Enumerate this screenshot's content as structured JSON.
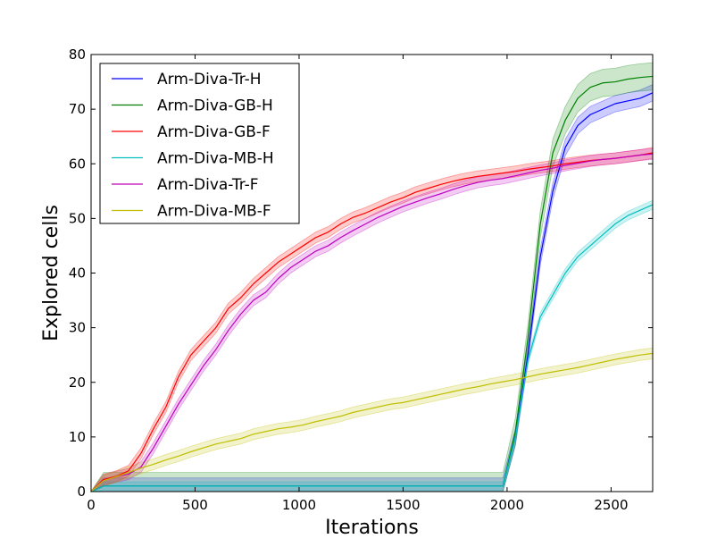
{
  "chart_data": {
    "type": "line",
    "xlabel": "Iterations",
    "ylabel": "Explored cells",
    "xlim": [
      0,
      2700
    ],
    "ylim": [
      0,
      80
    ],
    "xticks": [
      0,
      500,
      1000,
      1500,
      2000,
      2500
    ],
    "yticks": [
      0,
      10,
      20,
      30,
      40,
      50,
      60,
      70,
      80
    ],
    "grid": false,
    "legend_position": "top-left",
    "x": [
      0,
      60,
      120,
      180,
      240,
      300,
      360,
      420,
      480,
      540,
      600,
      660,
      720,
      780,
      840,
      900,
      960,
      1020,
      1080,
      1140,
      1200,
      1260,
      1320,
      1380,
      1440,
      1500,
      1560,
      1620,
      1680,
      1740,
      1800,
      1860,
      1920,
      1980,
      2040,
      2100,
      2160,
      2220,
      2280,
      2340,
      2400,
      2460,
      2520,
      2580,
      2640,
      2700
    ],
    "series": [
      {
        "name": "Arm-Diva-Tr-H",
        "color": "#0000ff",
        "values": [
          0,
          1,
          1,
          1,
          1,
          1,
          1,
          1,
          1,
          1,
          1,
          1,
          1,
          1,
          1,
          1,
          1,
          1,
          1,
          1,
          1,
          1,
          1,
          1,
          1,
          1,
          1,
          1,
          1,
          1,
          1,
          1,
          1,
          1,
          10,
          25,
          43,
          55,
          63,
          67,
          69,
          70,
          71,
          71.5,
          72,
          73
        ],
        "band": 1.5
      },
      {
        "name": "Arm-Diva-GB-H",
        "color": "#008000",
        "values": [
          0,
          1,
          1,
          1,
          1,
          1,
          1,
          1,
          1,
          1,
          1,
          1,
          1,
          1,
          1,
          1,
          1,
          1,
          1,
          1,
          1,
          1,
          1,
          1,
          1,
          1,
          1,
          1,
          1,
          1,
          1,
          1,
          1,
          1,
          11,
          28,
          49,
          62,
          68,
          72,
          74,
          74.8,
          75,
          75.5,
          75.8,
          76
        ],
        "band": 2.5
      },
      {
        "name": "Arm-Diva-GB-F",
        "color": "#ff0000",
        "values": [
          0,
          2.2,
          2.8,
          3.8,
          7,
          11.5,
          15.5,
          21,
          25,
          27.5,
          30,
          33.5,
          35.5,
          38,
          40,
          42,
          43.5,
          45,
          46.5,
          47.5,
          49,
          50.2,
          51,
          52,
          53,
          53.8,
          54.8,
          55.5,
          56.2,
          56.8,
          57.3,
          57.7,
          58,
          58.3,
          58.6,
          59,
          59.3,
          59.6,
          60,
          60.3,
          60.6,
          60.8,
          61,
          61.3,
          61.6,
          62
        ],
        "band": 1
      },
      {
        "name": "Arm-Diva-MB-H",
        "color": "#00bfbf",
        "values": [
          0,
          1,
          1,
          1,
          1,
          1,
          1,
          1,
          1,
          1,
          1,
          1,
          1,
          1,
          1,
          1,
          1,
          1,
          1,
          1,
          1,
          1,
          1,
          1,
          1,
          1,
          1,
          1,
          1,
          1,
          1,
          1,
          1,
          1,
          10,
          24,
          32,
          36,
          40,
          43,
          45,
          47,
          49,
          50.5,
          51.5,
          52.5
        ],
        "band": 0.8
      },
      {
        "name": "Arm-Diva-Tr-F",
        "color": "#bf00bf",
        "values": [
          0,
          2,
          2.7,
          3.2,
          4.5,
          8,
          12,
          16,
          19.5,
          23,
          26,
          29.5,
          32.5,
          35,
          36.5,
          39,
          41,
          42.5,
          44,
          45,
          46.5,
          47.8,
          49,
          50.2,
          51.2,
          52.2,
          53,
          53.8,
          54.5,
          55.3,
          56,
          56.6,
          57,
          57.3,
          57.8,
          58.3,
          58.8,
          59.2,
          59.7,
          60.1,
          60.5,
          60.8,
          61,
          61.3,
          61.6,
          61.8
        ],
        "band": 1
      },
      {
        "name": "Arm-Diva-MB-F",
        "color": "#bfbf00",
        "values": [
          0,
          2,
          2.7,
          3.5,
          4.3,
          5,
          5.8,
          6.5,
          7.3,
          8,
          8.7,
          9.2,
          9.7,
          10.5,
          11,
          11.5,
          11.8,
          12.2,
          12.8,
          13.3,
          13.8,
          14.5,
          15,
          15.5,
          16,
          16.3,
          16.8,
          17.3,
          17.8,
          18.3,
          18.8,
          19.2,
          19.7,
          20.1,
          20.5,
          21,
          21.5,
          21.9,
          22.3,
          22.7,
          23.2,
          23.7,
          24.2,
          24.6,
          25,
          25.3
        ],
        "band": 1
      }
    ]
  }
}
